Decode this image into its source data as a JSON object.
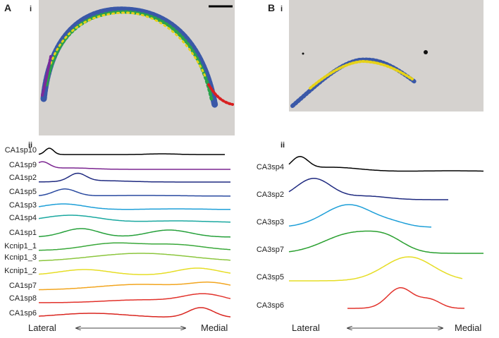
{
  "panel_a": {
    "letter": "A",
    "sub_image": "i",
    "sub_profiles": "ii",
    "tracks": [
      "CA1sp10",
      "CA1sp9",
      "CA1sp2",
      "CA1sp5",
      "CA1sp3",
      "CA1sp4",
      "CA1sp1",
      "Kcnip1_1",
      "Kcnip1_3",
      "Kcnip1_2",
      "CA1sp7",
      "CA1sp8",
      "CA1sp6"
    ],
    "axis": {
      "left": "Lateral",
      "right": "Medial"
    }
  },
  "panel_b": {
    "letter": "B",
    "sub_image": "i",
    "sub_profiles": "ii",
    "tracks": [
      "CA3sp4",
      "CA3sp2",
      "CA3sp3",
      "CA3sp7",
      "CA3sp5",
      "CA3sp6"
    ],
    "axis": {
      "left": "Lateral",
      "right": "Medial"
    }
  }
}
